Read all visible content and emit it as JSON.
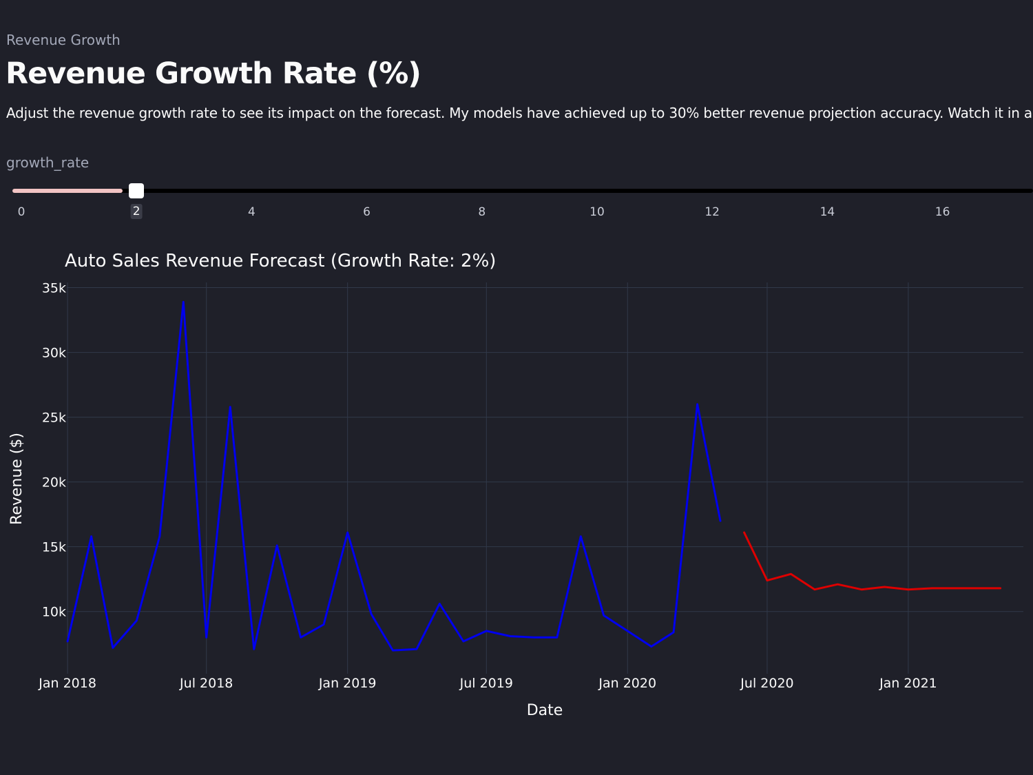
{
  "header": {
    "caption": "Revenue Growth",
    "title": "Revenue Growth Rate (%)",
    "description": "Adjust the revenue growth rate to see its impact on the forecast. My models have achieved up to 30% better revenue projection accuracy. Watch it in action!"
  },
  "slider": {
    "label": "growth_rate",
    "min": 0,
    "max": 20,
    "value": 2,
    "value_label": "2",
    "ticks": [
      "0",
      "2",
      "4",
      "6",
      "8",
      "10",
      "12",
      "14",
      "16"
    ],
    "fill_color": "#f2c4c4"
  },
  "chart_data": {
    "type": "line",
    "title": "Auto Sales Revenue Forecast (Growth Rate: 2%)",
    "xlabel": "Date",
    "ylabel": "Revenue ($)",
    "x_tick_labels": [
      "Jan 2018",
      "Jul 2018",
      "Jan 2019",
      "Jul 2019",
      "Jan 2020",
      "Jul 2020",
      "Jan 2021"
    ],
    "x_tick_dates": [
      "2018-01-01",
      "2018-07-01",
      "2019-01-01",
      "2019-07-01",
      "2020-01-01",
      "2020-07-01",
      "2021-01-01"
    ],
    "y_tick_labels": [
      "10k",
      "15k",
      "20k",
      "25k",
      "30k",
      "35k"
    ],
    "y_tick_values": [
      10000,
      15000,
      20000,
      25000,
      30000,
      35000
    ],
    "xlim": [
      "2017-12-31",
      "2021-05-31"
    ],
    "ylim": [
      5200,
      35400
    ],
    "grid": true,
    "series": [
      {
        "color": "#0000ee",
        "points": [
          [
            "2018-01-01",
            7700
          ],
          [
            "2018-02-01",
            15800
          ],
          [
            "2018-03-01",
            7200
          ],
          [
            "2018-04-01",
            9300
          ],
          [
            "2018-05-01",
            15800
          ],
          [
            "2018-06-01",
            33900
          ],
          [
            "2018-07-01",
            8000
          ],
          [
            "2018-08-01",
            25800
          ],
          [
            "2018-09-01",
            7100
          ],
          [
            "2018-10-01",
            15100
          ],
          [
            "2018-11-01",
            8000
          ],
          [
            "2018-12-01",
            9000
          ],
          [
            "2019-01-01",
            16100
          ],
          [
            "2019-02-01",
            9800
          ],
          [
            "2019-03-01",
            7000
          ],
          [
            "2019-04-01",
            7100
          ],
          [
            "2019-05-01",
            10600
          ],
          [
            "2019-06-01",
            7700
          ],
          [
            "2019-07-01",
            8500
          ],
          [
            "2019-08-01",
            8100
          ],
          [
            "2019-09-01",
            8000
          ],
          [
            "2019-10-01",
            8000
          ],
          [
            "2019-11-01",
            15800
          ],
          [
            "2019-12-01",
            9700
          ],
          [
            "2020-01-01",
            8500
          ],
          [
            "2020-02-01",
            7300
          ],
          [
            "2020-03-01",
            8400
          ],
          [
            "2020-04-01",
            26000
          ],
          [
            "2020-05-01",
            17000
          ]
        ]
      },
      {
        "color": "#dd0000",
        "points": [
          [
            "2020-06-01",
            16100
          ],
          [
            "2020-07-01",
            12400
          ],
          [
            "2020-08-01",
            12900
          ],
          [
            "2020-09-01",
            11700
          ],
          [
            "2020-10-01",
            12100
          ],
          [
            "2020-11-01",
            11700
          ],
          [
            "2020-12-01",
            11900
          ],
          [
            "2021-01-01",
            11700
          ],
          [
            "2021-02-01",
            11800
          ],
          [
            "2021-03-01",
            11800
          ],
          [
            "2021-04-01",
            11800
          ],
          [
            "2021-05-01",
            11800
          ]
        ]
      }
    ]
  }
}
